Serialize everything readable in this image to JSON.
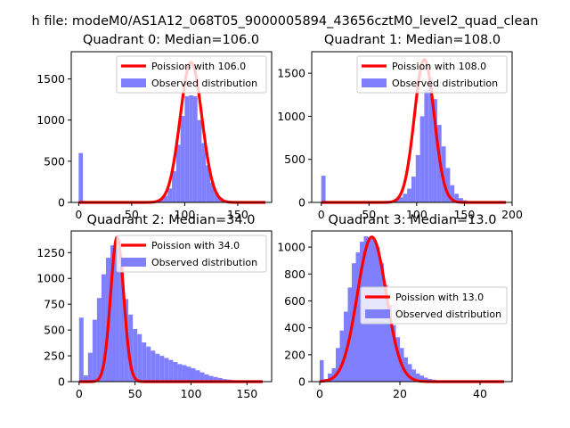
{
  "figure_title": "h file: modeM0/AS1A12_068T05_9000005894_43656cztM0_level2_quad_clean",
  "colors": {
    "hist": "#8080ff",
    "poisson": "#ff0000"
  },
  "chart_data": [
    {
      "type": "bar",
      "title": "Quadrant 0: Median=106.0",
      "median": 106.0,
      "peak": 1700,
      "xlim": [
        -7,
        182
      ],
      "ylim": [
        0,
        1830
      ],
      "xticks": [
        0,
        50,
        100,
        150
      ],
      "yticks": [
        0,
        500,
        1000,
        1500
      ],
      "legend": [
        "Poission with 106.0",
        "Observed distribution"
      ],
      "legend_position": "upper right",
      "bin_width": 4,
      "bins_start": [
        0,
        4,
        8,
        12,
        16,
        20,
        24,
        28,
        32,
        36,
        40,
        44,
        48,
        52,
        56,
        60,
        64,
        68,
        72,
        76,
        80,
        84,
        88,
        92,
        96,
        100,
        104,
        108,
        112,
        116,
        120,
        124,
        128,
        132,
        136,
        140,
        144,
        148,
        152,
        156,
        160,
        164,
        168,
        172
      ],
      "hist_values": [
        600,
        0,
        0,
        0,
        0,
        0,
        0,
        0,
        0,
        0,
        0,
        0,
        0,
        0,
        0,
        0,
        0,
        5,
        15,
        40,
        80,
        170,
        380,
        700,
        1050,
        1290,
        1300,
        1290,
        1000,
        720,
        450,
        240,
        120,
        60,
        25,
        12,
        6,
        3,
        2,
        1,
        1,
        0,
        0,
        0
      ]
    },
    {
      "type": "bar",
      "title": "Quadrant 1: Median=108.0",
      "median": 108.0,
      "peak": 1660,
      "xlim": [
        -10,
        200
      ],
      "ylim": [
        0,
        1750
      ],
      "xticks": [
        0,
        50,
        100,
        150,
        200
      ],
      "yticks": [
        0,
        500,
        1000,
        1500
      ],
      "legend": [
        "Poission with 108.0",
        "Observed distribution"
      ],
      "legend_position": "upper right",
      "bin_width": 4.5,
      "bins_start": [
        0,
        4.5,
        9,
        13.5,
        18,
        22.5,
        27,
        31.5,
        36,
        40.5,
        45,
        49.5,
        54,
        58.5,
        63,
        67.5,
        72,
        76.5,
        81,
        85.5,
        90,
        94.5,
        99,
        103.5,
        108,
        112.5,
        117,
        121.5,
        126,
        130.5,
        135,
        139.5,
        144,
        148.5,
        153,
        157.5,
        162,
        166.5,
        171,
        175.5,
        180,
        184.5,
        189
      ],
      "hist_values": [
        310,
        0,
        0,
        0,
        0,
        0,
        0,
        0,
        0,
        0,
        0,
        0,
        0,
        0,
        0,
        10,
        20,
        40,
        60,
        100,
        160,
        300,
        550,
        1000,
        1310,
        1450,
        1200,
        900,
        650,
        400,
        200,
        100,
        50,
        25,
        12,
        8,
        4,
        2,
        1,
        1,
        1,
        0,
        0
      ]
    },
    {
      "type": "bar",
      "title": "Quadrant 2: Median=34.0",
      "median": 34.0,
      "peak": 1400,
      "xlim": [
        -7,
        172
      ],
      "ylim": [
        0,
        1460
      ],
      "xticks": [
        0,
        50,
        100,
        150
      ],
      "yticks": [
        0,
        250,
        500,
        750,
        1000,
        1250
      ],
      "legend": [
        "Poission with 34.0",
        "Observed distribution"
      ],
      "legend_position": "upper right",
      "bin_width": 4,
      "bins_start": [
        0,
        4,
        8,
        12,
        16,
        20,
        24,
        28,
        32,
        36,
        40,
        44,
        48,
        52,
        56,
        60,
        64,
        68,
        72,
        76,
        80,
        84,
        88,
        92,
        96,
        100,
        104,
        108,
        112,
        116,
        120,
        124,
        128,
        132,
        136,
        140,
        144,
        148,
        152,
        156,
        160
      ],
      "hist_values": [
        620,
        60,
        280,
        600,
        810,
        1040,
        1200,
        1320,
        1290,
        1120,
        800,
        650,
        510,
        460,
        380,
        340,
        300,
        270,
        250,
        230,
        210,
        190,
        170,
        160,
        145,
        130,
        110,
        90,
        70,
        55,
        45,
        35,
        25,
        20,
        15,
        10,
        8,
        5,
        3,
        2,
        1
      ]
    },
    {
      "type": "bar",
      "title": "Quadrant 3: Median=13.0",
      "median": 13.0,
      "peak": 1075,
      "xlim": [
        -2,
        48
      ],
      "ylim": [
        0,
        1120
      ],
      "xticks": [
        0,
        20,
        40
      ],
      "yticks": [
        0,
        200,
        400,
        600,
        800,
        1000
      ],
      "legend": [
        "Poission with 13.0",
        "Observed distribution"
      ],
      "legend_position": "center right",
      "bin_width": 1,
      "bins_start": [
        0,
        1,
        2,
        3,
        4,
        5,
        6,
        7,
        8,
        9,
        10,
        11,
        12,
        13,
        14,
        15,
        16,
        17,
        18,
        19,
        20,
        21,
        22,
        23,
        24,
        25,
        26,
        27,
        28,
        29,
        30,
        31,
        32,
        33,
        34,
        35,
        36,
        37,
        38,
        39,
        40,
        41,
        42,
        43,
        44,
        45
      ],
      "hist_values": [
        160,
        20,
        60,
        100,
        250,
        380,
        520,
        700,
        880,
        960,
        1040,
        1080,
        1075,
        1060,
        1000,
        880,
        720,
        570,
        420,
        330,
        250,
        180,
        130,
        90,
        60,
        45,
        30,
        20,
        15,
        10,
        8,
        6,
        4,
        3,
        2,
        2,
        1,
        1,
        1,
        1,
        0,
        0,
        0,
        0,
        0,
        1
      ]
    }
  ]
}
